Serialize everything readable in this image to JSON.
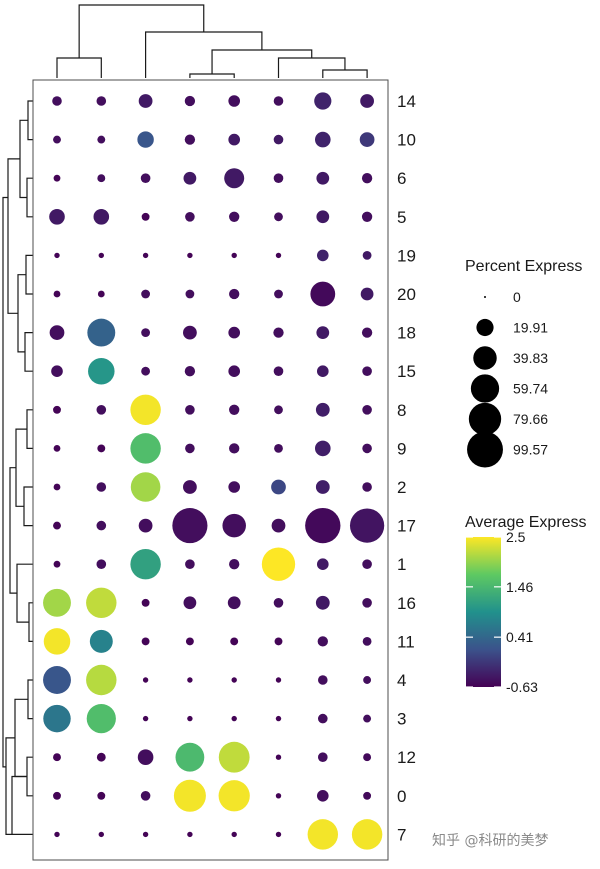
{
  "chart_data": {
    "type": "dotplot",
    "title": "",
    "xlabel": "",
    "ylabel": "",
    "rows": [
      "14",
      "10",
      "6",
      "5",
      "19",
      "20",
      "18",
      "15",
      "8",
      "9",
      "2",
      "17",
      "1",
      "16",
      "11",
      "4",
      "3",
      "12",
      "0",
      "7"
    ],
    "n_columns": 8,
    "grid": false,
    "legend_position": "right",
    "legends": {
      "size": {
        "title": "Percent Express",
        "labels": [
          "0",
          "19.91",
          "39.83",
          "59.74",
          "79.66",
          "99.57"
        ],
        "values": [
          0,
          19.91,
          39.83,
          59.74,
          79.66,
          99.57
        ]
      },
      "color": {
        "title": "Average Express",
        "tick_labels": [
          "2.5",
          "1.46",
          "0.41",
          "-0.63"
        ],
        "ticks": [
          2.5,
          1.46,
          0.41,
          -0.63
        ],
        "range": [
          -0.63,
          2.5
        ],
        "palette": [
          "#440154",
          "#3b528b",
          "#21918c",
          "#5ec962",
          "#fde725"
        ]
      }
    },
    "percent": [
      [
        5,
        5,
        12,
        6,
        8,
        5,
        20,
        12
      ],
      [
        3,
        3,
        18,
        6,
        8,
        5,
        16,
        14
      ],
      [
        2,
        3,
        5,
        10,
        28,
        5,
        10,
        6
      ],
      [
        16,
        16,
        3,
        5,
        6,
        4,
        10,
        6
      ],
      [
        1,
        1,
        1,
        1,
        1,
        1,
        8,
        4
      ],
      [
        2,
        2,
        4,
        4,
        6,
        4,
        45,
        10
      ],
      [
        14,
        58,
        4,
        12,
        8,
        6,
        10,
        6
      ],
      [
        8,
        52,
        4,
        6,
        8,
        5,
        8,
        5
      ],
      [
        3,
        5,
        70,
        5,
        6,
        4,
        12,
        5
      ],
      [
        2,
        3,
        70,
        5,
        6,
        4,
        16,
        5
      ],
      [
        2,
        5,
        66,
        12,
        8,
        14,
        12,
        5
      ],
      [
        3,
        5,
        12,
        95,
        40,
        12,
        96,
        90
      ],
      [
        2,
        5,
        70,
        5,
        6,
        85,
        8,
        5
      ],
      [
        58,
        70,
        3,
        10,
        10,
        5,
        12,
        5
      ],
      [
        52,
        38,
        3,
        3,
        3,
        3,
        6,
        4
      ],
      [
        58,
        70,
        1,
        1,
        1,
        1,
        5,
        3
      ],
      [
        56,
        64,
        1,
        1,
        1,
        1,
        5,
        3
      ],
      [
        3,
        4,
        16,
        62,
        72,
        1,
        5,
        3
      ],
      [
        3,
        3,
        5,
        78,
        74,
        1,
        8,
        3
      ],
      [
        1,
        1,
        1,
        1,
        1,
        1,
        70,
        70
      ]
    ],
    "average": [
      [
        -0.5,
        -0.5,
        -0.4,
        -0.5,
        -0.5,
        -0.5,
        -0.3,
        -0.4
      ],
      [
        -0.5,
        -0.5,
        0.2,
        -0.5,
        -0.4,
        -0.4,
        -0.3,
        -0.1
      ],
      [
        -0.6,
        -0.5,
        -0.5,
        -0.4,
        -0.4,
        -0.5,
        -0.4,
        -0.5
      ],
      [
        -0.4,
        -0.4,
        -0.6,
        -0.5,
        -0.5,
        -0.5,
        -0.4,
        -0.5
      ],
      [
        -0.6,
        -0.6,
        -0.6,
        -0.6,
        -0.6,
        -0.6,
        -0.3,
        -0.4
      ],
      [
        -0.6,
        -0.6,
        -0.5,
        -0.5,
        -0.5,
        -0.5,
        -0.55,
        -0.4
      ],
      [
        -0.5,
        0.35,
        -0.5,
        -0.5,
        -0.5,
        -0.5,
        -0.4,
        -0.5
      ],
      [
        -0.5,
        1.0,
        -0.5,
        -0.5,
        -0.5,
        -0.5,
        -0.4,
        -0.5
      ],
      [
        -0.6,
        -0.5,
        2.45,
        -0.5,
        -0.5,
        -0.5,
        -0.35,
        -0.5
      ],
      [
        -0.6,
        -0.6,
        1.55,
        -0.5,
        -0.5,
        -0.5,
        -0.35,
        -0.5
      ],
      [
        -0.6,
        -0.5,
        2.05,
        -0.5,
        -0.5,
        0.05,
        -0.35,
        -0.5
      ],
      [
        -0.6,
        -0.5,
        -0.5,
        -0.5,
        -0.5,
        -0.5,
        -0.55,
        -0.45
      ],
      [
        -0.6,
        -0.5,
        1.15,
        -0.5,
        -0.5,
        2.5,
        -0.4,
        -0.5
      ],
      [
        2.05,
        2.2,
        -0.6,
        -0.5,
        -0.5,
        -0.5,
        -0.4,
        -0.5
      ],
      [
        2.45,
        0.75,
        -0.6,
        -0.6,
        -0.6,
        -0.6,
        -0.5,
        -0.5
      ],
      [
        0.2,
        2.15,
        -0.6,
        -0.6,
        -0.6,
        -0.6,
        -0.5,
        -0.5
      ],
      [
        0.6,
        1.55,
        -0.6,
        -0.6,
        -0.6,
        -0.6,
        -0.5,
        -0.5
      ],
      [
        -0.6,
        -0.6,
        -0.5,
        1.5,
        2.2,
        -0.6,
        -0.5,
        -0.55
      ],
      [
        -0.6,
        -0.6,
        -0.5,
        2.45,
        2.45,
        -0.6,
        -0.5,
        -0.55
      ],
      [
        -0.6,
        -0.6,
        -0.6,
        -0.6,
        -0.6,
        -0.6,
        2.45,
        2.45
      ]
    ]
  },
  "watermark": "知乎 @科研的美梦"
}
